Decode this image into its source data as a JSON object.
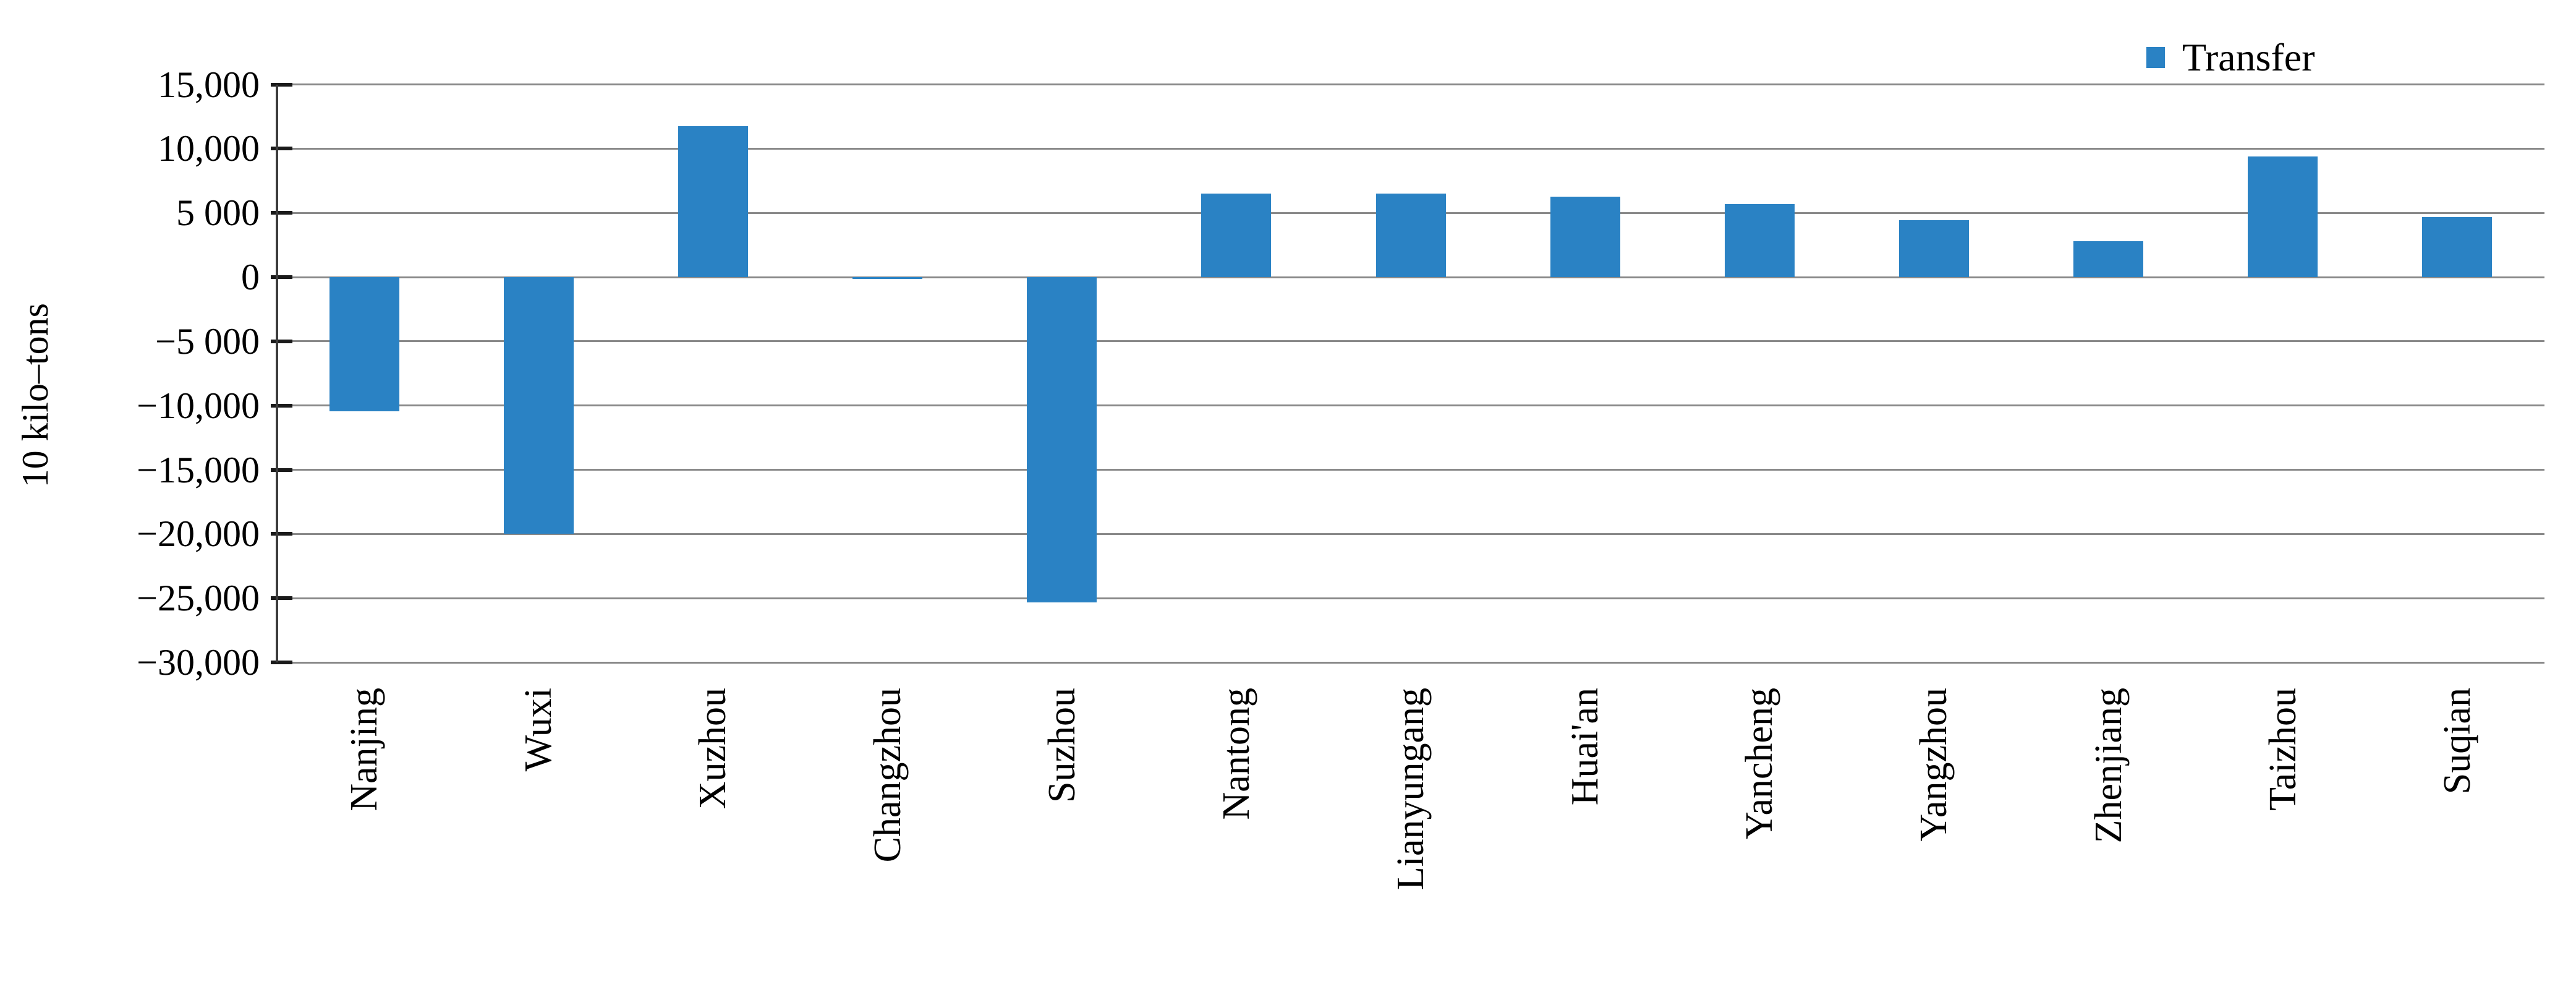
{
  "figure": {
    "background_color": "#ffffff",
    "legend": {
      "label": "Transfer",
      "swatch_color": "#2a82c4",
      "position": "top-right"
    },
    "y_axis": {
      "title": "10 kilo–tons",
      "tick_labels": [
        "15,000",
        "10,000",
        "5 000",
        "0",
        "−5 000",
        "−10,000",
        "−15,000",
        "−20,000",
        "−25,000",
        "−30,000"
      ],
      "tick_values": [
        15000,
        10000,
        5000,
        0,
        -5000,
        -10000,
        -15000,
        -20000,
        -25000,
        -30000
      ]
    },
    "colors": {
      "bar": "#2a82c4",
      "gridline": "#898989",
      "axis_line": "#3c3c3c",
      "tick_mark": "#1a1a1a",
      "text": "#000000"
    }
  },
  "chart_data": {
    "type": "bar",
    "title": "",
    "xlabel": "",
    "ylabel": "10 kilo–tons",
    "categories": [
      "Nanjing",
      "Wuxi",
      "Xuzhou",
      "Changzhou",
      "Suzhou",
      "Nantong",
      "Lianyungang",
      "Huai'an",
      "Yancheng",
      "Yangzhou",
      "Zhenjiang",
      "Taizhou",
      "Suqian"
    ],
    "series": [
      {
        "name": "Transfer",
        "values": [
          -10450,
          -20000,
          11750,
          0,
          -25350,
          6500,
          6500,
          6250,
          5700,
          4450,
          2800,
          9400,
          4650
        ]
      }
    ],
    "ylim": [
      -30000,
      15000
    ],
    "ytick_step": 5000,
    "grid": true,
    "legend_position": "top-right",
    "bar_color": "#2a82c4",
    "x_tick_label_rotation": 90
  }
}
